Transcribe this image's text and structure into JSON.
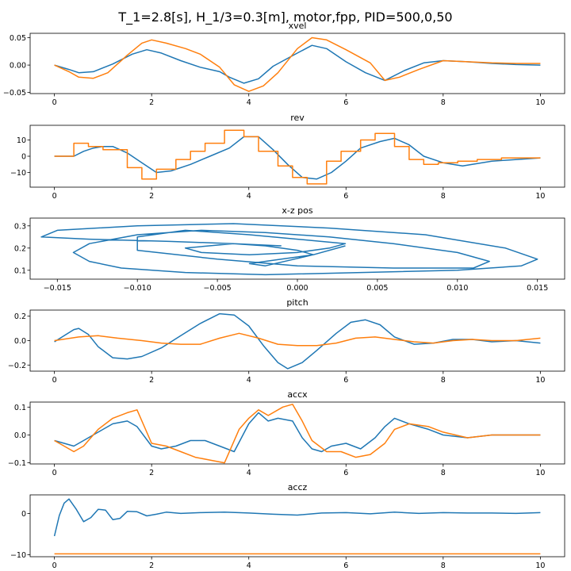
{
  "figure_title": "T_1=2.8[s], H_1/3=0.3[m], motor,fpp, PID=500,0,50",
  "colors": {
    "series_a": "#1f77b4",
    "series_b": "#ff7f0e",
    "axis": "#000000"
  },
  "chart_data": [
    {
      "type": "line",
      "title": "xvel",
      "xlim": [
        -0.5,
        10.5
      ],
      "ylim": [
        -0.052,
        0.058
      ],
      "xticks": [
        0,
        2,
        4,
        6,
        8,
        10
      ],
      "xtick_labels": [
        "0",
        "2",
        "4",
        "6",
        "8",
        "10"
      ],
      "yticks": [
        -0.05,
        0.0,
        0.05
      ],
      "ytick_labels": [
        "−0.05",
        "0.00",
        "0.05"
      ],
      "series": [
        {
          "color": "#1f77b4",
          "x": [
            0,
            0.3,
            0.5,
            0.8,
            1.2,
            1.6,
            1.9,
            2.2,
            2.6,
            3.0,
            3.4,
            3.6,
            3.9,
            4.2,
            4.5,
            5.0,
            5.3,
            5.6,
            6.0,
            6.4,
            6.8,
            7.2,
            7.6,
            8.0,
            8.5,
            9.0,
            9.5,
            10
          ],
          "y": [
            0,
            -0.008,
            -0.014,
            -0.012,
            0.002,
            0.02,
            0.028,
            0.022,
            0.008,
            -0.004,
            -0.012,
            -0.022,
            -0.033,
            -0.025,
            -0.002,
            0.022,
            0.036,
            0.03,
            0.006,
            -0.014,
            -0.028,
            -0.01,
            0.004,
            0.008,
            0.006,
            0.003,
            0.001,
            0
          ]
        },
        {
          "color": "#ff7f0e",
          "x": [
            0,
            0.3,
            0.5,
            0.8,
            1.1,
            1.5,
            1.8,
            2.0,
            2.3,
            2.7,
            3.0,
            3.4,
            3.7,
            4.0,
            4.3,
            4.6,
            5.0,
            5.3,
            5.6,
            6.0,
            6.5,
            6.8,
            7.1,
            7.5,
            8.0,
            8.5,
            9.0,
            9.5,
            10
          ],
          "y": [
            0,
            -0.012,
            -0.022,
            -0.024,
            -0.014,
            0.018,
            0.04,
            0.046,
            0.04,
            0.03,
            0.02,
            -0.004,
            -0.036,
            -0.048,
            -0.038,
            -0.014,
            0.03,
            0.05,
            0.046,
            0.028,
            0.004,
            -0.028,
            -0.022,
            -0.008,
            0.008,
            0.006,
            0.004,
            0.003,
            0.003
          ]
        }
      ]
    },
    {
      "type": "line",
      "title": "rev",
      "xlim": [
        -0.5,
        10.5
      ],
      "ylim": [
        -19,
        19
      ],
      "xticks": [
        0,
        2,
        4,
        6,
        8,
        10
      ],
      "xtick_labels": [
        "0",
        "2",
        "4",
        "6",
        "8",
        "10"
      ],
      "yticks": [
        -10,
        0,
        10
      ],
      "ytick_labels": [
        "−10",
        "0",
        "10"
      ],
      "series": [
        {
          "color": "#1f77b4",
          "x": [
            0,
            0.4,
            0.6,
            0.8,
            1.0,
            1.2,
            1.5,
            1.8,
            2.1,
            2.4,
            2.8,
            3.2,
            3.6,
            3.9,
            4.2,
            4.5,
            4.8,
            5.1,
            5.4,
            5.7,
            6.0,
            6.3,
            6.7,
            7.0,
            7.3,
            7.6,
            8.0,
            8.4,
            9.0,
            10
          ],
          "y": [
            0,
            0,
            3,
            5,
            6,
            6,
            2,
            -4,
            -10,
            -9,
            -5,
            0,
            5,
            12,
            12,
            4,
            -5,
            -13,
            -14,
            -10,
            -3,
            5,
            9,
            11,
            7,
            0,
            -4,
            -6,
            -3,
            -1
          ]
        },
        {
          "color": "#ff7f0e",
          "step": true,
          "x": [
            0,
            0.4,
            0.7,
            1.0,
            1.5,
            1.8,
            2.1,
            2.5,
            2.8,
            3.1,
            3.5,
            3.9,
            4.2,
            4.6,
            4.9,
            5.2,
            5.6,
            5.9,
            6.3,
            6.6,
            7.0,
            7.3,
            7.6,
            7.9,
            8.3,
            8.7,
            9.2,
            10
          ],
          "y": [
            0,
            8,
            6,
            4,
            -7,
            -14,
            -8,
            -2,
            3,
            8,
            16,
            12,
            3,
            -6,
            -13,
            -17,
            -3,
            3,
            10,
            14,
            6,
            -2,
            -5,
            -4,
            -3,
            -2,
            -1,
            -1
          ]
        }
      ]
    },
    {
      "type": "line",
      "title": "x-z pos",
      "xlim": [
        -0.0167,
        0.0167
      ],
      "ylim": [
        0.06,
        0.335
      ],
      "xticks": [
        -0.015,
        -0.01,
        -0.005,
        0.0,
        0.005,
        0.01,
        0.015
      ],
      "xtick_labels": [
        "−0.015",
        "−0.010",
        "−0.005",
        "0.000",
        "0.005",
        "0.010",
        "0.015"
      ],
      "yticks": [
        0.1,
        0.2,
        0.3
      ],
      "ytick_labels": [
        "0.1",
        "0.2",
        "0.3"
      ],
      "series": [
        {
          "color": "#1f77b4",
          "x": [
            -0.001,
            -0.004,
            -0.008,
            -0.013,
            -0.016,
            -0.015,
            -0.01,
            -0.004,
            0.002,
            0.008,
            0.013,
            0.015,
            0.014,
            0.01,
            0.004,
            -0.002,
            -0.007,
            -0.011,
            -0.013,
            -0.014,
            -0.013,
            -0.01,
            -0.006,
            -0.002,
            0.002,
            0.006,
            0.01,
            0.012,
            0.011,
            0.006,
            0.0,
            -0.005,
            -0.01,
            -0.01,
            -0.007,
            -0.003,
            0.0,
            0.003,
            0.002,
            0.0,
            -0.003,
            -0.006,
            -0.007,
            -0.004,
            -0.002,
            0.0,
            0.001,
            -0.001,
            -0.003,
            -0.002,
            0.001,
            0.003
          ],
          "y": [
            0.21,
            0.22,
            0.23,
            0.24,
            0.25,
            0.28,
            0.3,
            0.31,
            0.29,
            0.26,
            0.2,
            0.15,
            0.12,
            0.1,
            0.09,
            0.08,
            0.09,
            0.11,
            0.14,
            0.18,
            0.22,
            0.26,
            0.28,
            0.27,
            0.25,
            0.22,
            0.18,
            0.14,
            0.11,
            0.11,
            0.12,
            0.15,
            0.19,
            0.25,
            0.28,
            0.26,
            0.24,
            0.22,
            0.2,
            0.18,
            0.17,
            0.18,
            0.2,
            0.22,
            0.21,
            0.19,
            0.17,
            0.15,
            0.13,
            0.12,
            0.17,
            0.21
          ]
        }
      ]
    },
    {
      "type": "line",
      "title": "pitch",
      "xlim": [
        -0.5,
        10.5
      ],
      "ylim": [
        -0.25,
        0.25
      ],
      "xticks": [
        0,
        2,
        4,
        6,
        8,
        10
      ],
      "xtick_labels": [
        "0",
        "2",
        "4",
        "6",
        "8",
        "10"
      ],
      "yticks": [
        -0.2,
        0.0,
        0.2
      ],
      "ytick_labels": [
        "−0.2",
        "0.0",
        "0.2"
      ],
      "series": [
        {
          "color": "#1f77b4",
          "x": [
            0,
            0.2,
            0.4,
            0.5,
            0.7,
            0.9,
            1.2,
            1.5,
            1.8,
            2.2,
            2.6,
            3.0,
            3.4,
            3.7,
            4.0,
            4.3,
            4.6,
            4.8,
            5.1,
            5.4,
            5.8,
            6.1,
            6.4,
            6.7,
            7.0,
            7.4,
            7.8,
            8.2,
            8.6,
            9.0,
            9.5,
            10
          ],
          "y": [
            -0.01,
            0.04,
            0.09,
            0.1,
            0.05,
            -0.05,
            -0.14,
            -0.15,
            -0.13,
            -0.06,
            0.04,
            0.14,
            0.22,
            0.21,
            0.12,
            -0.04,
            -0.18,
            -0.23,
            -0.18,
            -0.08,
            0.06,
            0.15,
            0.17,
            0.13,
            0.03,
            -0.03,
            -0.02,
            0.01,
            0.01,
            -0.01,
            0.0,
            -0.02
          ]
        },
        {
          "color": "#ff7f0e",
          "x": [
            0,
            0.5,
            0.9,
            1.3,
            1.8,
            2.2,
            2.6,
            3.0,
            3.4,
            3.8,
            4.2,
            4.6,
            5.0,
            5.4,
            5.8,
            6.2,
            6.6,
            7.0,
            7.4,
            7.8,
            8.2,
            8.6,
            9.0,
            9.5,
            10
          ],
          "y": [
            0,
            0.03,
            0.04,
            0.02,
            0.0,
            -0.02,
            -0.03,
            -0.03,
            0.02,
            0.06,
            0.02,
            -0.03,
            -0.04,
            -0.04,
            -0.02,
            0.02,
            0.03,
            0.01,
            -0.01,
            -0.02,
            0.0,
            0.01,
            0.0,
            0.0,
            0.02
          ]
        }
      ]
    },
    {
      "type": "line",
      "title": "accx",
      "xlim": [
        -0.5,
        10.5
      ],
      "ylim": [
        -0.104,
        0.118
      ],
      "xticks": [
        0,
        2,
        4,
        6,
        8,
        10
      ],
      "xtick_labels": [
        "0",
        "2",
        "4",
        "6",
        "8",
        "10"
      ],
      "yticks": [
        -0.1,
        0.0,
        0.1
      ],
      "ytick_labels": [
        "−0.1",
        "0.0",
        "0.1"
      ],
      "series": [
        {
          "color": "#1f77b4",
          "x": [
            0,
            0.2,
            0.4,
            0.6,
            0.9,
            1.2,
            1.5,
            1.7,
            2.0,
            2.2,
            2.5,
            2.8,
            3.1,
            3.4,
            3.7,
            4.0,
            4.2,
            4.4,
            4.6,
            4.9,
            5.1,
            5.3,
            5.5,
            5.7,
            6.0,
            6.3,
            6.6,
            6.8,
            7.0,
            7.3,
            7.7,
            8.0,
            8.5,
            9.0,
            9.5,
            10
          ],
          "y": [
            -0.02,
            -0.03,
            -0.04,
            -0.02,
            0.01,
            0.04,
            0.05,
            0.03,
            -0.04,
            -0.05,
            -0.04,
            -0.02,
            -0.02,
            -0.04,
            -0.06,
            0.04,
            0.08,
            0.05,
            0.06,
            0.05,
            -0.01,
            -0.05,
            -0.06,
            -0.04,
            -0.03,
            -0.05,
            -0.01,
            0.03,
            0.06,
            0.04,
            0.02,
            0.0,
            -0.01,
            0.0,
            0.0,
            0.0
          ]
        },
        {
          "color": "#ff7f0e",
          "x": [
            0,
            0.2,
            0.4,
            0.6,
            0.9,
            1.2,
            1.5,
            1.7,
            2.0,
            2.3,
            2.6,
            2.9,
            3.2,
            3.5,
            3.8,
            4.0,
            4.2,
            4.4,
            4.7,
            4.9,
            5.1,
            5.3,
            5.6,
            5.9,
            6.2,
            6.5,
            6.8,
            7.0,
            7.3,
            7.7,
            8.0,
            8.5,
            9.0,
            9.5,
            10
          ],
          "y": [
            -0.02,
            -0.04,
            -0.06,
            -0.04,
            0.02,
            0.06,
            0.08,
            0.09,
            -0.03,
            -0.04,
            -0.06,
            -0.08,
            -0.09,
            -0.1,
            0.02,
            0.06,
            0.09,
            0.07,
            0.1,
            0.11,
            0.05,
            -0.02,
            -0.06,
            -0.06,
            -0.08,
            -0.07,
            -0.03,
            0.02,
            0.04,
            0.03,
            0.01,
            -0.01,
            0.0,
            0.0,
            0.0
          ]
        }
      ]
    },
    {
      "type": "line",
      "title": "accz",
      "xlim": [
        -0.5,
        10.5
      ],
      "ylim": [
        -10.5,
        4.5
      ],
      "xticks": [
        0,
        2,
        4,
        6,
        8,
        10
      ],
      "xtick_labels": [
        "0",
        "2",
        "4",
        "6",
        "8",
        "10"
      ],
      "yticks": [
        -10,
        0
      ],
      "ytick_labels": [
        "−10",
        "0"
      ],
      "series": [
        {
          "color": "#1f77b4",
          "x": [
            0,
            0.1,
            0.2,
            0.3,
            0.45,
            0.6,
            0.75,
            0.9,
            1.05,
            1.2,
            1.35,
            1.5,
            1.7,
            1.9,
            2.1,
            2.3,
            2.6,
            3.0,
            3.5,
            4.0,
            4.5,
            5.0,
            5.5,
            6.0,
            6.5,
            7.0,
            7.5,
            8.0,
            8.5,
            9.0,
            9.5,
            10
          ],
          "y": [
            -5.5,
            -0.5,
            2.5,
            3.5,
            1.0,
            -2.0,
            -1.0,
            1.0,
            0.8,
            -1.5,
            -1.2,
            0.5,
            0.4,
            -0.6,
            -0.2,
            0.3,
            0.0,
            0.2,
            0.3,
            0.1,
            -0.2,
            -0.4,
            0.1,
            0.2,
            -0.1,
            0.3,
            0.0,
            0.2,
            0.1,
            0.1,
            0.0,
            0.2
          ]
        },
        {
          "color": "#ff7f0e",
          "x": [
            0,
            10
          ],
          "y": [
            -9.8,
            -9.8
          ]
        }
      ]
    }
  ]
}
